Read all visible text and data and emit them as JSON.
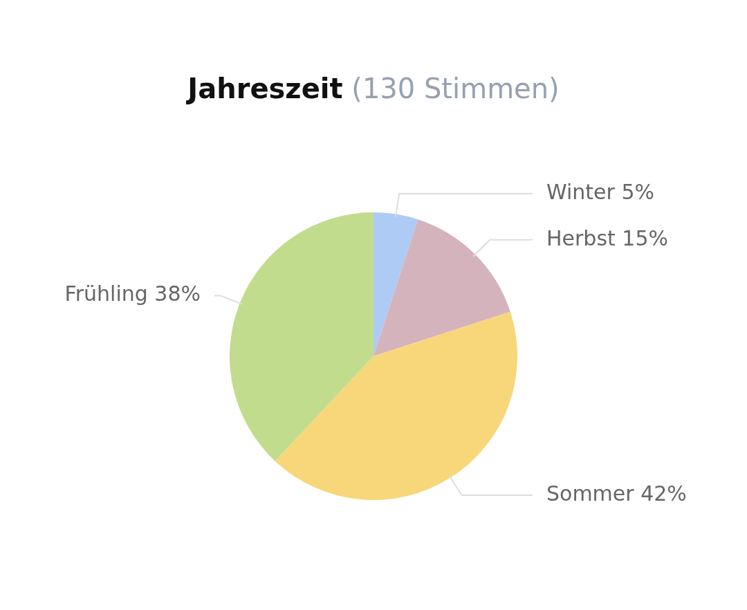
{
  "chart_data": {
    "type": "pie",
    "title": "Jahreszeit",
    "subtitle": "(130 Stimmen)",
    "categories": [
      "Winter",
      "Herbst",
      "Sommer",
      "Frühling"
    ],
    "values": [
      5,
      15,
      42,
      38
    ],
    "value_labels": [
      "5%",
      "15%",
      "42%",
      "38%"
    ],
    "colors": [
      "#aecbf5",
      "#d4b3bd",
      "#f7d77a",
      "#c2dc8e"
    ],
    "legend": false
  }
}
